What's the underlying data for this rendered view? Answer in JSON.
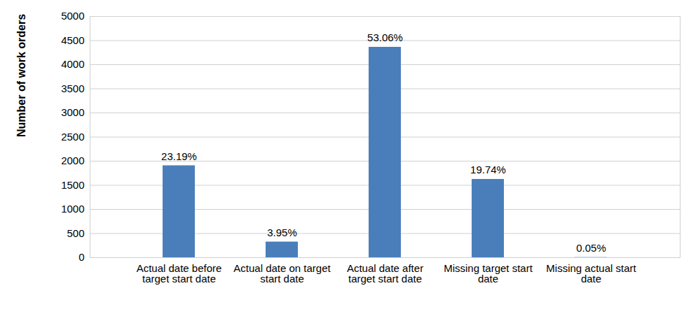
{
  "chart_data": {
    "type": "bar",
    "y_label": "Number of work orders",
    "categories": [
      "Actual date before target start date",
      "Actual date on target start date",
      "Actual date after target start date",
      "Missing target start date",
      "Missing actual start date"
    ],
    "values": [
      1906,
      325,
      4362,
      1623,
      4
    ],
    "percent_labels": [
      "23.19%",
      "3.95%",
      "53.06%",
      "19.74%",
      "0.05%"
    ],
    "color": "#4a7ebb",
    "ylim": [
      0,
      5000
    ],
    "yticks": [
      0,
      500,
      1000,
      1500,
      2000,
      2500,
      3000,
      3500,
      4000,
      4500,
      5000
    ],
    "grid": true
  }
}
